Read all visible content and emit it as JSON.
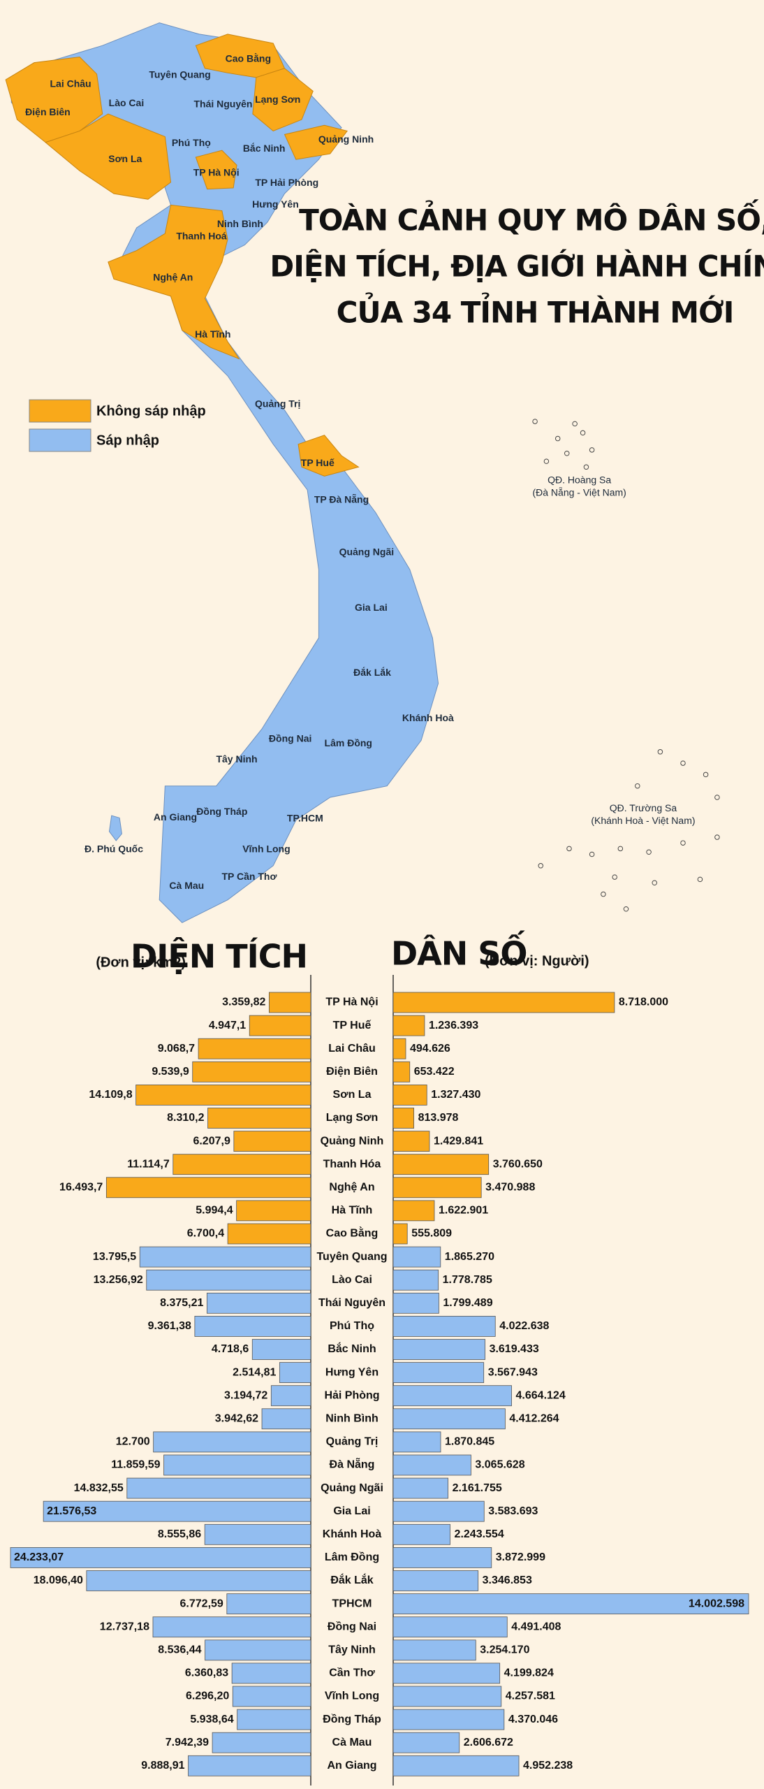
{
  "title_lines": [
    "TOÀN CẢNH QUY MÔ DÂN SỐ,",
    "DIỆN TÍCH, ĐỊA GIỚI HÀNH CHÍNH",
    "CỦA 34 TỈNH THÀNH MỚI"
  ],
  "map": {
    "labels": [
      "Lai Châu",
      "Điện Biên",
      "Lào Cai",
      "Tuyên Quang",
      "Cao Bằng",
      "Thái Nguyên",
      "Lạng Sơn",
      "Phú Thọ",
      "Bắc Ninh",
      "Quảng Ninh",
      "Sơn La",
      "TP Hà Nội",
      "TP Hải Phòng",
      "Hưng Yên",
      "Ninh Bình",
      "Thanh Hoá",
      "Nghệ An",
      "Hà Tĩnh",
      "Quảng Trị",
      "TP Huế",
      "TP Đà Nẵng",
      "Quảng Ngãi",
      "Gia Lai",
      "Đắk Lắk",
      "Khánh Hoà",
      "Lâm Đồng",
      "Đồng Nai",
      "Tây Ninh",
      "Đồng Tháp",
      "An Giang",
      "TP.HCM",
      "Vĩnh Long",
      "TP Cần Thơ",
      "Cà Mau",
      "Đ. Phú Quốc"
    ],
    "islands": [
      {
        "name": "QĐ. Hoàng Sa",
        "note": "(Đà Nẵng - Việt Nam)"
      },
      {
        "name": "QĐ. Trường Sa",
        "note": "(Khánh Hoà - Việt Nam)"
      }
    ]
  },
  "chart_data": {
    "type": "butterfly",
    "legend": [
      {
        "name": "Không sáp nhập",
        "color": "#f9a91a"
      },
      {
        "name": "Sáp nhập",
        "color": "#92bdf0"
      }
    ],
    "categories": [
      "TP Hà Nội",
      "TP Huế",
      "Lai Châu",
      "Điện Biên",
      "Sơn La",
      "Lạng Sơn",
      "Quảng Ninh",
      "Thanh Hóa",
      "Nghệ An",
      "Hà Tĩnh",
      "Cao Bằng",
      "Tuyên Quang",
      "Lào Cai",
      "Thái Nguyên",
      "Phú Thọ",
      "Bắc Ninh",
      "Hưng Yên",
      "Hải Phòng",
      "Ninh Bình",
      "Quảng Trị",
      "Đà Nẵng",
      "Quảng Ngãi",
      "Gia Lai",
      "Khánh Hoà",
      "Lâm Đồng",
      "Đắk Lắk",
      "TPHCM",
      "Đồng Nai",
      "Tây Ninh",
      "Cần Thơ",
      "Vĩnh Long",
      "Đồng Tháp",
      "Cà Mau",
      "An Giang"
    ],
    "group": [
      0,
      0,
      0,
      0,
      0,
      0,
      0,
      0,
      0,
      0,
      0,
      1,
      1,
      1,
      1,
      1,
      1,
      1,
      1,
      1,
      1,
      1,
      1,
      1,
      1,
      1,
      1,
      1,
      1,
      1,
      1,
      1,
      1,
      1
    ],
    "series": [
      {
        "name": "DIỆN TÍCH",
        "unit": "(Đơn vị: km2)",
        "values": [
          3359.82,
          4947.1,
          9068.7,
          9539.9,
          14109.8,
          8310.2,
          6207.9,
          11114.7,
          16493.7,
          5994.4,
          6700.4,
          13795.5,
          13256.92,
          8375.21,
          9361.38,
          4718.6,
          2514.81,
          3194.72,
          3942.62,
          12700,
          11859.59,
          14832.55,
          21576.53,
          8555.86,
          24233.07,
          18096.4,
          6772.59,
          12737.18,
          8536.44,
          6360.83,
          6296.2,
          5938.64,
          7942.39,
          9888.91
        ],
        "value_labels": [
          "3.359,82",
          "4.947,1",
          "9.068,7",
          "9.539,9",
          "14.109,8",
          "8.310,2",
          "6.207,9",
          "11.114,7",
          "16.493,7",
          "5.994,4",
          "6.700,4",
          "13.795,5",
          "13.256,92",
          "8.375,21",
          "9.361,38",
          "4.718,6",
          "2.514,81",
          "3.194,72",
          "3.942,62",
          "12.700",
          "11.859,59",
          "14.832,55",
          "21.576,53",
          "8.555,86",
          "24.233,07",
          "18.096,40",
          "6.772,59",
          "12.737,18",
          "8.536,44",
          "6.360,83",
          "6.296,20",
          "5.938,64",
          "7.942,39",
          "9.888,91"
        ]
      },
      {
        "name": "DÂN SỐ",
        "unit": "(Đơn vị: Người)",
        "values": [
          8718000,
          1236393,
          494626,
          653422,
          1327430,
          813978,
          1429841,
          3760650,
          3470988,
          1622901,
          555809,
          1865270,
          1778785,
          1799489,
          4022638,
          3619433,
          3567943,
          4664124,
          4412264,
          1870845,
          3065628,
          2161755,
          3583693,
          2243554,
          3872999,
          3346853,
          14002598,
          4491408,
          3254170,
          4199824,
          4257581,
          4370046,
          2606672,
          4952238
        ],
        "value_labels": [
          "8.718.000",
          "1.236.393",
          "494.626",
          "653.422",
          "1.327.430",
          "813.978",
          "1.429.841",
          "3.760.650",
          "3.470.988",
          "1.622.901",
          "555.809",
          "1.865.270",
          "1.778.785",
          "1.799.489",
          "4.022.638",
          "3.619.433",
          "3.567.943",
          "4.664.124",
          "4.412.264",
          "1.870.845",
          "3.065.628",
          "2.161.755",
          "3.583.693",
          "2.243.554",
          "3.872.999",
          "3.346.853",
          "14.002.598",
          "4.491.408",
          "3.254.170",
          "4.199.824",
          "4.257.581",
          "4.370.046",
          "2.606.672",
          "4.952.238"
        ]
      }
    ]
  }
}
